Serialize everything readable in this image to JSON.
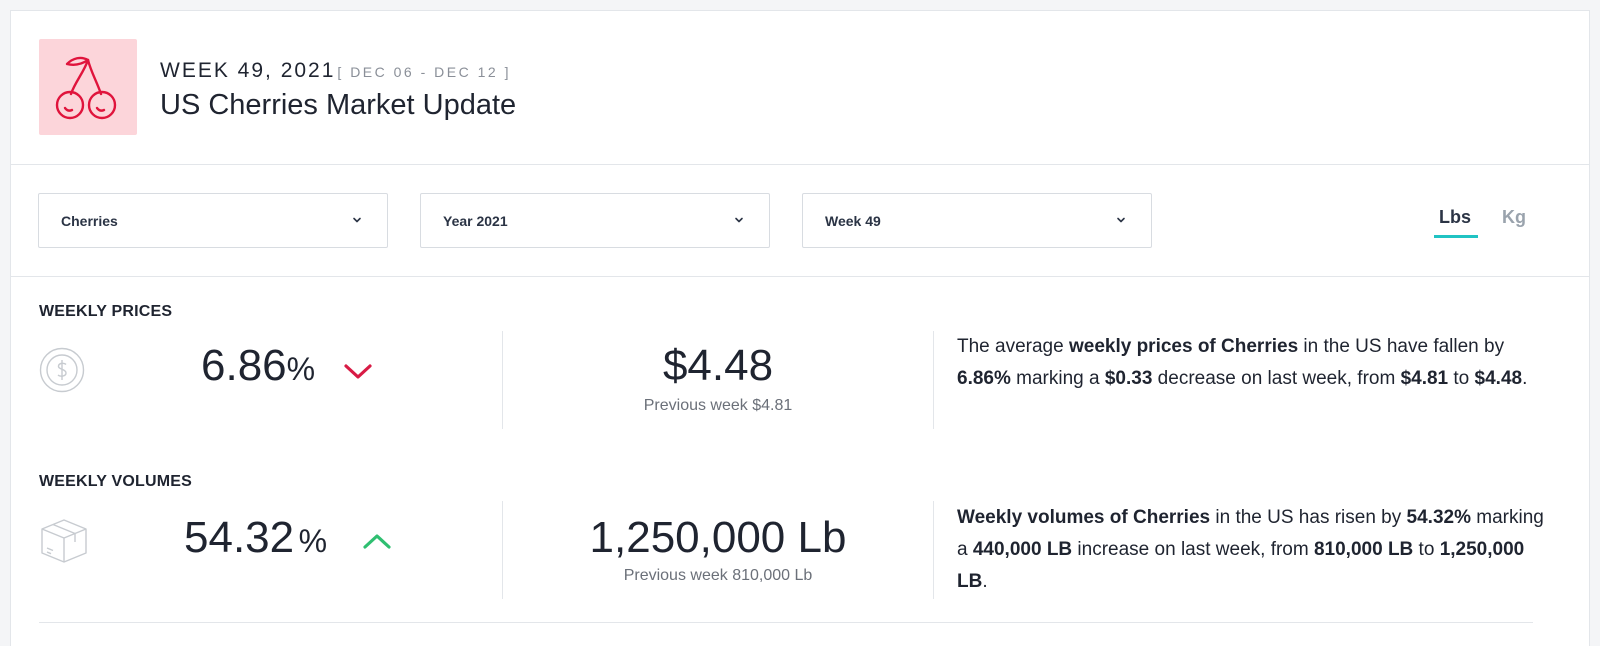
{
  "header": {
    "logo_icon": "cherries-icon",
    "logo_bg": "#fcd5da",
    "logo_color": "#e0143c",
    "week_title": "WEEK 49, 2021",
    "week_range": "[ DEC 06 - DEC 12 ]",
    "page_title": "US Cherries Market Update"
  },
  "filters": {
    "product": "Cherries",
    "year": "Year 2021",
    "week": "Week 49",
    "units": [
      "Lbs",
      "Kg"
    ],
    "active_unit": "Lbs",
    "accent": "#20c3c3"
  },
  "prices": {
    "label": "WEEKLY PRICES",
    "icon": "dollar-coin-icon",
    "pct_value": "6.86",
    "pct_sign": "%",
    "direction": "down",
    "direction_color": "#d81b45",
    "current": "$4.48",
    "previous": "Previous week $4.81",
    "desc_1": "The average ",
    "desc_2": "weekly prices of Cherries",
    "desc_3": " in the US have fallen by ",
    "desc_4": "6.86%",
    "desc_5": " marking a ",
    "desc_6": "$0.33",
    "desc_7": " decrease on last week, from ",
    "desc_8": "$4.81",
    "desc_9": " to ",
    "desc_10": "$4.48",
    "desc_11": "."
  },
  "volumes": {
    "label": "WEEKLY VOLUMES",
    "icon": "package-box-icon",
    "pct_value": "54.32",
    "pct_sign": "%",
    "direction": "up",
    "direction_color": "#2fbf71",
    "current": "1,250,000 Lb",
    "previous": "Previous week 810,000 Lb",
    "desc_1": "Weekly volumes of Cherries",
    "desc_2": " in the US has risen by ",
    "desc_3": "54.32%",
    "desc_4": " marking a ",
    "desc_5": "440,000 LB",
    "desc_6": " increase on last week, from ",
    "desc_7": "810,000 LB",
    "desc_8": " to ",
    "desc_9": "1,250,000 LB",
    "desc_10": "."
  }
}
